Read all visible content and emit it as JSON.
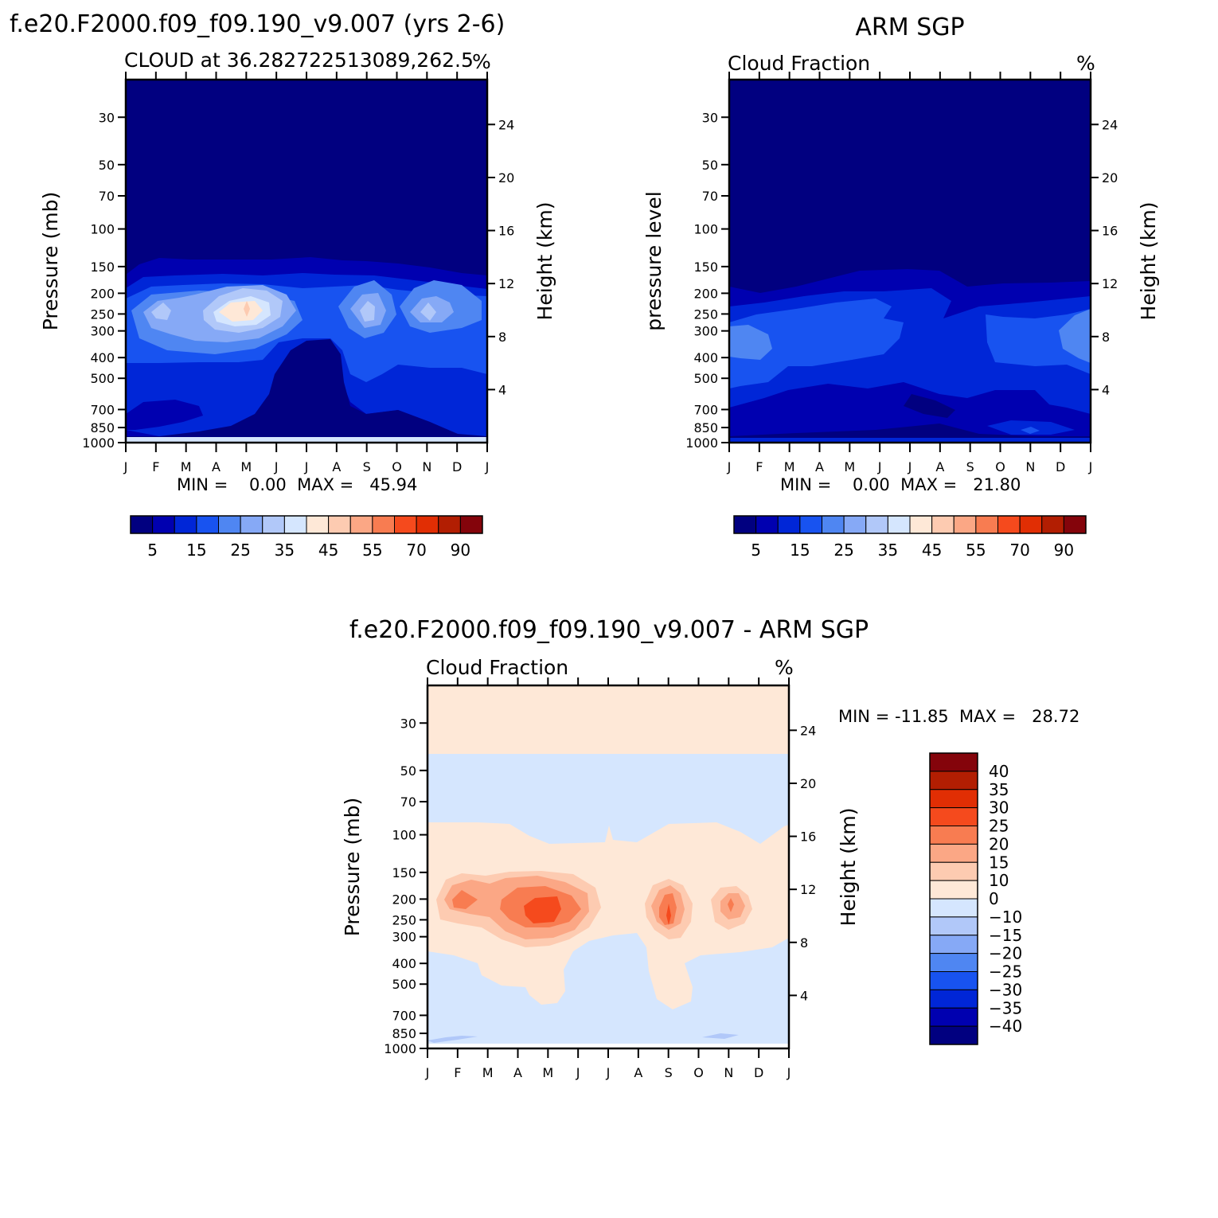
{
  "panels": {
    "model": {
      "figure_title": "f.e20.F2000.f09_f09.190_v9.007 (yrs 2-6)",
      "left_subtitle": "CLOUD at 36.282722513089,262.5",
      "right_subtitle": "%",
      "ylabel": "Pressure (mb)",
      "y2label": "Height (km)",
      "stats": "MIN =    0.00  MAX =   45.94"
    },
    "obs": {
      "figure_title": "ARM SGP",
      "left_subtitle": "Cloud Fraction",
      "right_subtitle": "%",
      "ylabel": "pressure level",
      "y2label": "Height (km)",
      "stats": "MIN =    0.00  MAX =   21.80"
    },
    "diff": {
      "figure_title": "f.e20.F2000.f09_f09.190_v9.007 - ARM SGP",
      "left_subtitle": "Cloud Fraction",
      "right_subtitle": "%",
      "ylabel": "Pressure (mb)",
      "y2label": "Height (km)",
      "stats": "MIN = -11.85  MAX =   28.72"
    }
  },
  "chart_data": [
    {
      "type": "heatmap",
      "id": "model",
      "title": "f.e20.F2000.f09_f09.190_v9.007 (yrs 2-6)",
      "subtitle": "CLOUD at 36.282722513089,262.5",
      "units": "%",
      "x_ticks": [
        "J",
        "F",
        "M",
        "A",
        "M",
        "J",
        "J",
        "A",
        "S",
        "O",
        "N",
        "D",
        "J"
      ],
      "y_ticks_pressure": [
        30,
        50,
        70,
        100,
        150,
        200,
        250,
        300,
        400,
        500,
        700,
        850,
        1000
      ],
      "y2_ticks_height_km": [
        4,
        8,
        12,
        16,
        20,
        24
      ],
      "ylabel": "Pressure (mb)",
      "y2label": "Height (km)",
      "min": 0.0,
      "max": 45.94,
      "colorbar_levels": [
        5,
        15,
        25,
        35,
        45,
        55,
        70,
        90
      ],
      "regions": [
        {
          "level": 0,
          "approx": "above ~150 mb all year"
        },
        {
          "level": 1,
          "approx": "150-200 mb band"
        },
        {
          "level": 3,
          "approx": "200-400 mb band"
        },
        {
          "level": 6,
          "approx": "Mar-Jun max near 250 mb"
        },
        {
          "level": 8,
          "approx": "peak ~45.94 at late Apr, 250 mb"
        },
        {
          "level": 5,
          "approx": "Sep and Nov local maxima near 250 mb"
        },
        {
          "level": 0,
          "approx": "Jun-Aug 400-850 mb minimum"
        }
      ]
    },
    {
      "type": "heatmap",
      "id": "obs",
      "title": "ARM SGP",
      "subtitle": "Cloud Fraction",
      "units": "%",
      "x_ticks": [
        "J",
        "F",
        "M",
        "A",
        "M",
        "J",
        "J",
        "A",
        "S",
        "O",
        "N",
        "D",
        "J"
      ],
      "y_ticks_pressure": [
        30,
        50,
        70,
        100,
        150,
        200,
        250,
        300,
        400,
        500,
        700,
        850,
        1000
      ],
      "y2_ticks_height_km": [
        4,
        8,
        12,
        16,
        20,
        24
      ],
      "ylabel": "pressure level",
      "y2label": "Height (km)",
      "min": 0.0,
      "max": 21.8,
      "colorbar_levels": [
        5,
        15,
        25,
        35,
        45,
        55,
        70,
        90
      ],
      "regions": [
        {
          "level": 0,
          "approx": "above ~200 mb all year"
        },
        {
          "level": 2,
          "approx": "200-700 mb band"
        },
        {
          "level": 4,
          "approx": "Jan-Feb and Dec 300-500 mb maxima"
        }
      ]
    },
    {
      "type": "heatmap",
      "id": "diff",
      "title": "f.e20.F2000.f09_f09.190_v9.007 - ARM SGP",
      "subtitle": "Cloud Fraction",
      "units": "%",
      "x_ticks": [
        "J",
        "F",
        "M",
        "A",
        "M",
        "J",
        "J",
        "A",
        "S",
        "O",
        "N",
        "D",
        "J"
      ],
      "y_ticks_pressure": [
        30,
        50,
        70,
        100,
        150,
        200,
        250,
        300,
        400,
        500,
        700,
        850,
        1000
      ],
      "y2_ticks_height_km": [
        4,
        8,
        12,
        16,
        20,
        24
      ],
      "ylabel": "Pressure (mb)",
      "y2label": "Height (km)",
      "min": -11.85,
      "max": 28.72,
      "colorbar_levels": [
        40,
        35,
        30,
        25,
        20,
        15,
        10,
        0,
        -10,
        -15,
        -20,
        -25,
        -30,
        -35,
        -40
      ],
      "regions": [
        {
          "range": "0 to 10",
          "approx": "above ~50 mb"
        },
        {
          "range": "-10 to 0",
          "approx": "50-100 mb and below ~400 mb"
        },
        {
          "range": "0 to 10",
          "approx": "100-400 mb"
        },
        {
          "range": "25 to 30",
          "approx": "Apr-May near 250 mb"
        },
        {
          "range": "20 to 25",
          "approx": "Sep near 250 mb"
        },
        {
          "range": "10 to 15",
          "approx": "Nov near 250 mb"
        }
      ]
    }
  ],
  "colors": {
    "seq": [
      "#010080",
      "#0000b0",
      "#0026d7",
      "#1853f0",
      "#4f86f2",
      "#86a9f6",
      "#b1c8f9",
      "#d5e6fe",
      "#fee8d7",
      "#fdcbb1",
      "#fba785",
      "#f87c51",
      "#f54a1d",
      "#e12e04",
      "#b21e02",
      "#84040b"
    ],
    "diff": [
      "#84040b",
      "#b21e02",
      "#e12e04",
      "#f54a1d",
      "#f87c51",
      "#fba785",
      "#fdcbb1",
      "#fee8d7",
      "#d5e6fe",
      "#b1c8f9",
      "#86a9f6",
      "#4f86f2",
      "#1853f0",
      "#0026d7",
      "#0000b0",
      "#010080"
    ]
  }
}
